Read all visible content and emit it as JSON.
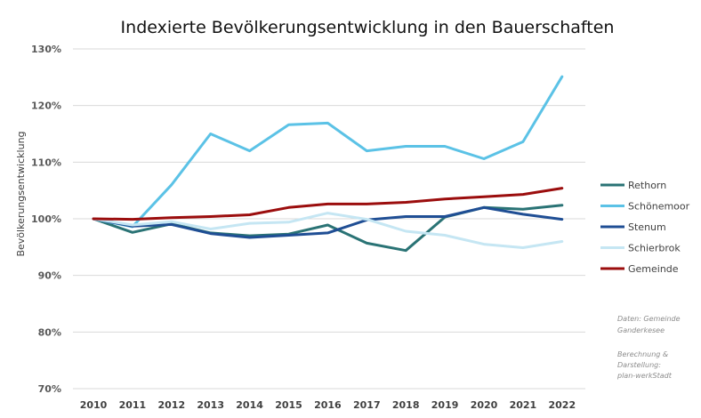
{
  "chart_data": {
    "type": "line",
    "title": "Indexierte Bevölkerungsentwicklung  in den Bauerschaften",
    "xlabel": "",
    "ylabel": "Bevölkerungsentwicklung",
    "categories": [
      "2010",
      "2011",
      "2012",
      "2013",
      "2014",
      "2015",
      "2016",
      "2017",
      "2018",
      "2019",
      "2020",
      "2021",
      "2022"
    ],
    "ylim": [
      70,
      130
    ],
    "yticks": [
      70,
      80,
      90,
      100,
      110,
      120,
      130
    ],
    "ytick_labels": [
      "70%",
      "80%",
      "90%",
      "100%",
      "110%",
      "120%",
      "130%"
    ],
    "grid": true,
    "legend_position": "right",
    "series": [
      {
        "name": "Rethorn",
        "color": "#2a7375",
        "values": [
          100,
          97.6,
          99.1,
          97.5,
          97.0,
          97.3,
          98.9,
          95.7,
          94.4,
          100.3,
          102.0,
          101.7,
          102.4
        ]
      },
      {
        "name": "Schönemoor",
        "color": "#5bc2e6",
        "values": [
          100,
          98.6,
          106.0,
          115.0,
          112.0,
          116.6,
          116.9,
          112.0,
          112.8,
          112.8,
          110.6,
          113.6,
          125.1
        ]
      },
      {
        "name": "Stenum",
        "color": "#1f4e94",
        "values": [
          100,
          98.7,
          99.0,
          97.4,
          96.7,
          97.1,
          97.5,
          99.8,
          100.4,
          100.4,
          102.0,
          100.8,
          99.9
        ]
      },
      {
        "name": "Schierbrok",
        "color": "#c5e6f3",
        "values": [
          100,
          98.9,
          99.5,
          98.2,
          99.2,
          99.4,
          101.0,
          99.9,
          97.8,
          97.1,
          95.5,
          94.9,
          96.0
        ]
      },
      {
        "name": "Gemeinde",
        "color": "#9b0d0d",
        "values": [
          100,
          99.9,
          100.2,
          100.4,
          100.7,
          102.0,
          102.6,
          102.6,
          102.9,
          103.5,
          103.9,
          104.3,
          105.4
        ]
      }
    ],
    "notes": [
      "Daten: Gemeinde Ganderkesee",
      "Berechnung & Darstellung: plan-werkStadt"
    ]
  }
}
